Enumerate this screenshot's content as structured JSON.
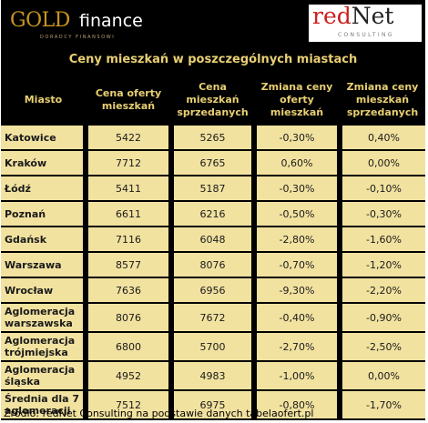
{
  "brand": {
    "gold_word": "GOLD",
    "finance_word": "finance",
    "gold_sub": "DORADCY FINANSOWI",
    "rednet_red": "red",
    "rednet_dark": "Net",
    "rednet_sub": "CONSULTING"
  },
  "title": "Ceny mieszkań w poszczególnych miastach",
  "columns": [
    "Miasto",
    "Cena oferty mieszkań",
    "Cena mieszkań sprzedanych",
    "Zmiana ceny oferty mieszkań",
    "Zmiana ceny mieszkań sprzedanych"
  ],
  "rows": [
    {
      "city": "Katowice",
      "offer": "5422",
      "sold": "5265",
      "offer_change": "-0,30%",
      "sold_change": "0,40%"
    },
    {
      "city": "Kraków",
      "offer": "7712",
      "sold": "6765",
      "offer_change": "0,60%",
      "sold_change": "0,00%"
    },
    {
      "city": "Łódź",
      "offer": "5411",
      "sold": "5187",
      "offer_change": "-0,30%",
      "sold_change": "-0,10%"
    },
    {
      "city": "Poznań",
      "offer": "6611",
      "sold": "6216",
      "offer_change": "-0,50%",
      "sold_change": "-0,30%"
    },
    {
      "city": "Gdańsk",
      "offer": "7116",
      "sold": "6048",
      "offer_change": "-2,80%",
      "sold_change": "-1,60%"
    },
    {
      "city": "Warszawa",
      "offer": "8577",
      "sold": "8076",
      "offer_change": "-0,70%",
      "sold_change": "-1,20%"
    },
    {
      "city": "Wrocław",
      "offer": "7636",
      "sold": "6956",
      "offer_change": "-9,30%",
      "sold_change": "-2,20%"
    },
    {
      "city": "Aglomeracja warszawska",
      "offer": "8076",
      "sold": "7672",
      "offer_change": "-0,40%",
      "sold_change": "-0,90%"
    },
    {
      "city": "Aglomeracja trójmiejska",
      "offer": "6800",
      "sold": "5700",
      "offer_change": "-2,70%",
      "sold_change": "-2,50%"
    },
    {
      "city": "Aglomeracja śląska",
      "offer": "4952",
      "sold": "4983",
      "offer_change": "-1,00%",
      "sold_change": "0,00%"
    },
    {
      "city": "Średnia dla 7 aglomeracji",
      "offer": "7512",
      "sold": "6975",
      "offer_change": "-0,80%",
      "sold_change": "-1,70%"
    }
  ],
  "footer": "Źródło: redNet Consulting na podstawie danych tabelaofert.pl",
  "colors": {
    "header_text": "#e8cf73",
    "cell_bg": "#f2e2a0",
    "gold": "#c8951f",
    "red": "#cc1f1f"
  }
}
